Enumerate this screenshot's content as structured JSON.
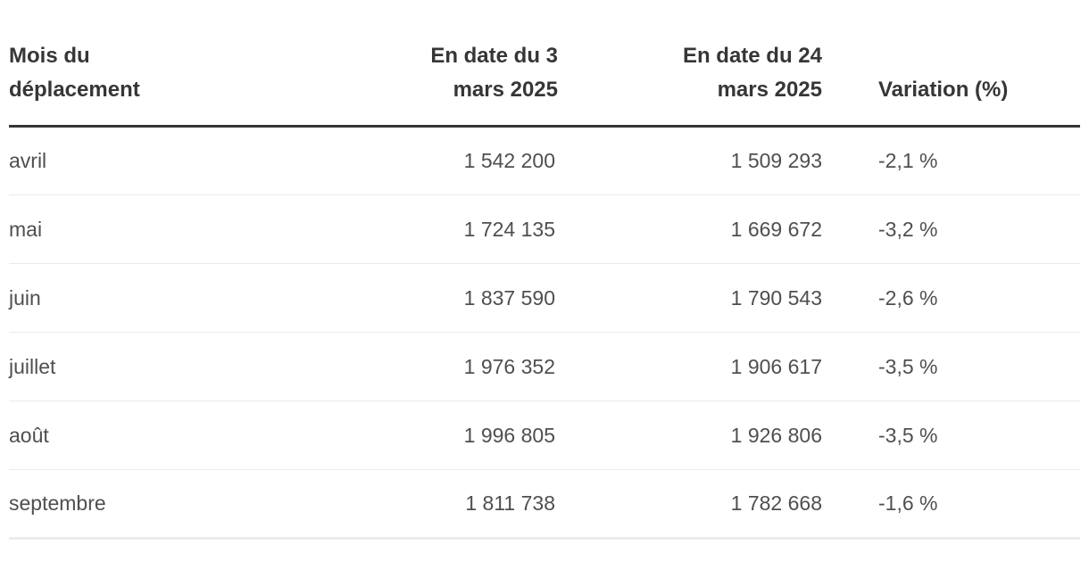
{
  "table": {
    "columns": [
      {
        "label": "Mois du déplacement",
        "lines": [
          "Mois du",
          "déplacement"
        ],
        "align": "left"
      },
      {
        "label": "En date du 3 mars 2025",
        "lines": [
          "En date du 3",
          "mars 2025"
        ],
        "align": "right"
      },
      {
        "label": "En date du 24 mars 2025",
        "lines": [
          "En date du 24",
          "mars 2025"
        ],
        "align": "right"
      },
      {
        "label": "Variation (%)",
        "lines": [
          "Variation (%)"
        ],
        "align": "left"
      }
    ],
    "rows": [
      [
        "avril",
        "1 542 200",
        "1 509 293",
        "-2,1 %"
      ],
      [
        "mai",
        "1 724 135",
        "1 669 672",
        "-3,2 %"
      ],
      [
        "juin",
        "1 837 590",
        "1 790 543",
        "-2,6 %"
      ],
      [
        "juillet",
        "1 976 352",
        "1 906 617",
        "-3,5 %"
      ],
      [
        "août",
        "1 996 805",
        "1 926 806",
        "-3,5 %"
      ],
      [
        "septembre",
        "1 811 738",
        "1 782 668",
        "-1,6 %"
      ]
    ]
  },
  "chart_data": {
    "type": "table",
    "title": "",
    "categories": [
      "avril",
      "mai",
      "juin",
      "juillet",
      "août",
      "septembre"
    ],
    "category_label": "Mois du déplacement",
    "series": [
      {
        "name": "En date du 3 mars 2025",
        "values": [
          1542200,
          1724135,
          1837590,
          1976352,
          1996805,
          1811738
        ]
      },
      {
        "name": "En date du 24 mars 2025",
        "values": [
          1509293,
          1669672,
          1790543,
          1906617,
          1926806,
          1782668
        ]
      },
      {
        "name": "Variation (%)",
        "values": [
          -2.1,
          -3.2,
          -2.6,
          -3.5,
          -3.5,
          -1.6
        ]
      }
    ]
  },
  "colors": {
    "header_text": "#363636",
    "body_text": "#4f4f4f",
    "header_rule": "#363636",
    "row_separator": "#eaeaea",
    "bottom_border": "#ececec",
    "background": "#ffffff"
  }
}
